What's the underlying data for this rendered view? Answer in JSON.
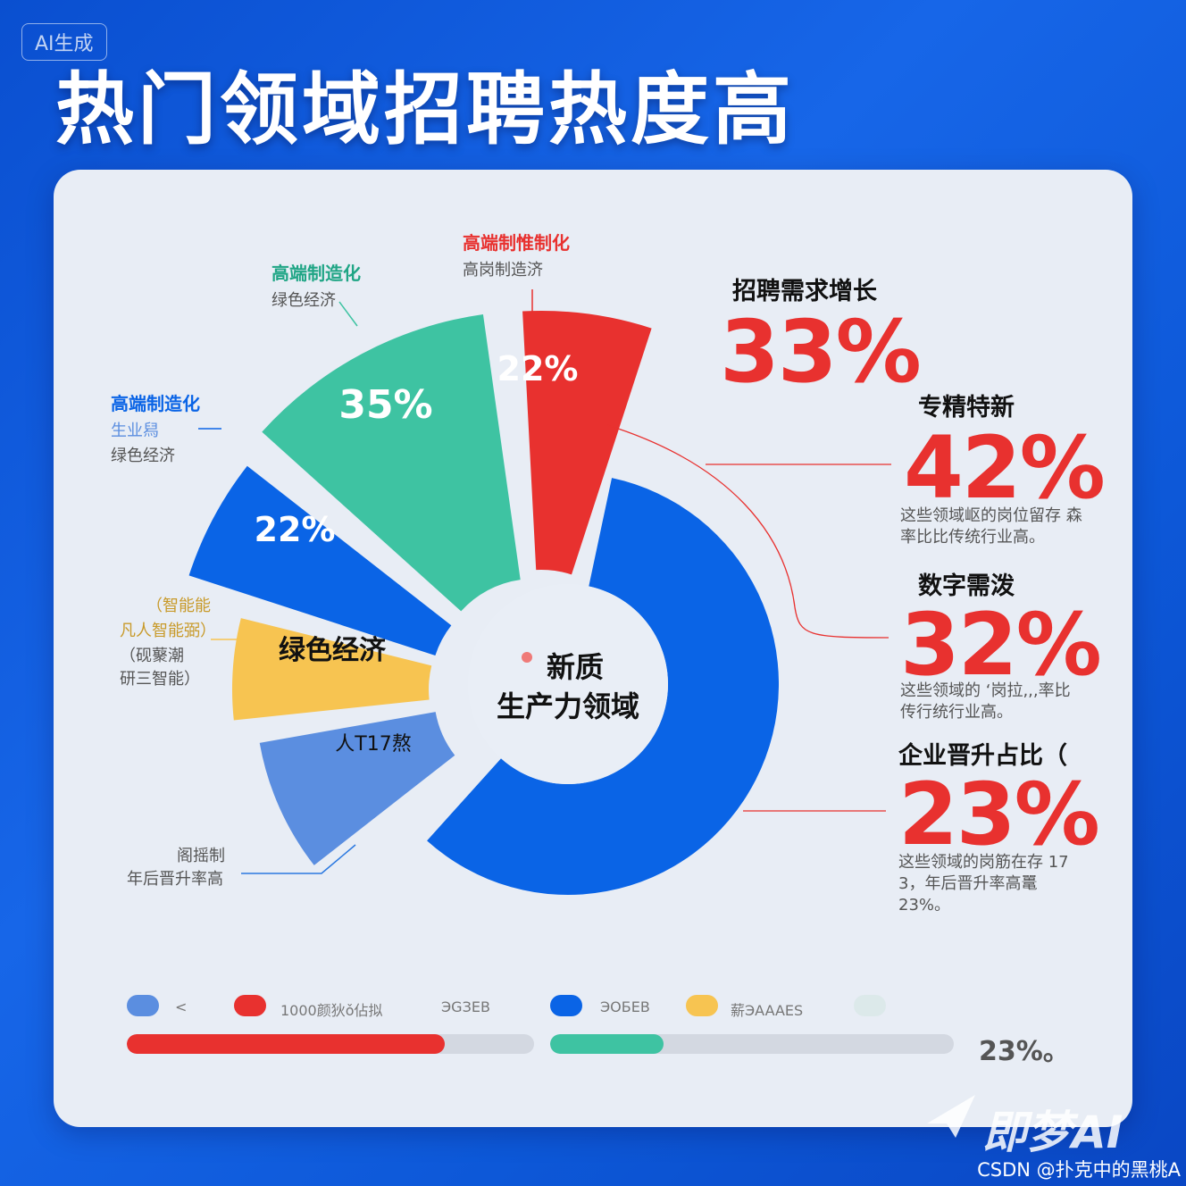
{
  "badge": "AI生成",
  "title": "热门领域招聘热度高",
  "colors": {
    "red": "#e8312f",
    "green": "#3ec3a2",
    "blue": "#0a64e6",
    "yellow": "#f7c451",
    "periwinkle": "#5b8ee0"
  },
  "chart_data": {
    "type": "pie",
    "center_label": [
      "新质",
      "生产力领域"
    ],
    "slices": [
      {
        "label": "22%",
        "color": "#e8312f"
      },
      {
        "label": "35%",
        "color": "#3ec3a2"
      },
      {
        "label": "22%",
        "color": "#0a64e6"
      },
      {
        "label": "绿色经济",
        "color": "#f7c451"
      },
      {
        "label": "人T17熬",
        "color": "#5b8ee0"
      },
      {
        "label": "",
        "color": "#0a64e6"
      }
    ]
  },
  "callouts": {
    "red": {
      "head": "高端制惟制化",
      "sub": "高岗制造济"
    },
    "green": {
      "head": "高端制造化",
      "sub": "绿色经济"
    },
    "blue": {
      "head": "高端制造化",
      "sub1": "生业舄",
      "sub2": "绿色经济"
    },
    "yellow": {
      "l1": "（智能能",
      "l2": "凡人智能弼）",
      "l3": "（砚藂潮",
      "l4": "研三智能）"
    },
    "bottom": {
      "l1": "阁摇制",
      "l2": "年后晋升率高"
    }
  },
  "stats": [
    {
      "title": "招聘需求增长",
      "value": "33%",
      "note": ""
    },
    {
      "title": "专精特新",
      "value": "42%",
      "note": "这些领域岖的岗位留存 森率比比传统行业高。"
    },
    {
      "title": "数字需泼",
      "value": "32%",
      "note": "这些领域的 ‘岗拉,,,率比 传行统行业高。"
    },
    {
      "title": "企业晋升占比（",
      "value": "23%",
      "note": "这些领域的岗筋在存 17 3，年后晋升率高鼍23%。"
    }
  ],
  "legend": [
    {
      "label": "<",
      "color": "#5b8ee0"
    },
    {
      "label": "1000颜狄ǒ佔拟",
      "color": "#e8312f"
    },
    {
      "label": "ЭGЗEB",
      "color": ""
    },
    {
      "label": "ЭOБЕB",
      "color": "#0a64e6"
    },
    {
      "label": "薪ЭAAAES",
      "color": "#f7c451"
    },
    {
      "label": "",
      "color": "#dce9ea"
    }
  ],
  "bars": [
    {
      "value": 0.78,
      "color": "#e8312f"
    },
    {
      "value": 0.28,
      "color": "#3ec3a2",
      "label": "23%。"
    }
  ],
  "watermark": "即梦AI",
  "credit": "CSDN @扑克中的黑桃A"
}
